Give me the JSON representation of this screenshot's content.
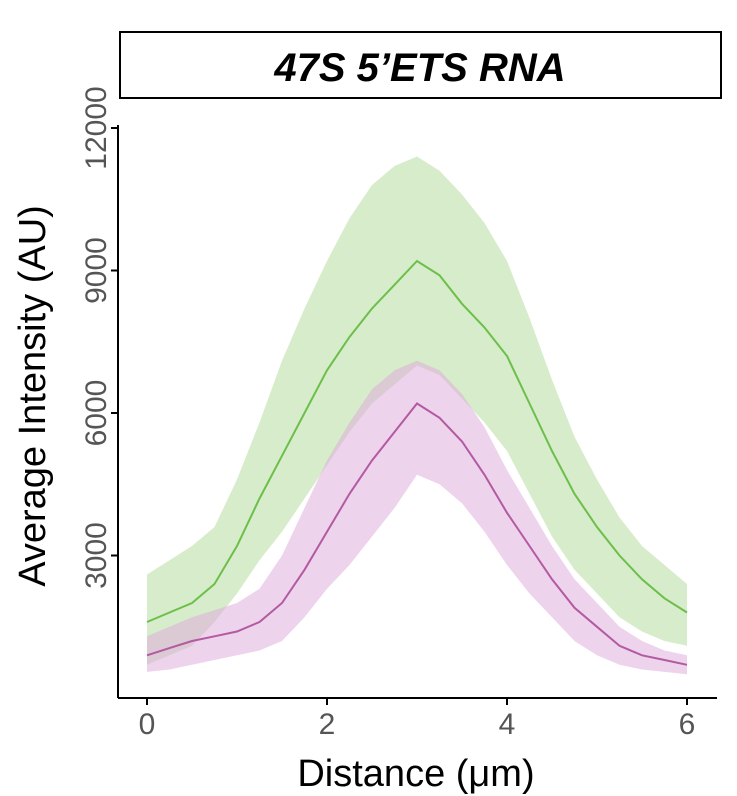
{
  "chart_data": {
    "type": "line",
    "title": "47S 5’ETS RNA",
    "xlabel": "Distance (μm)",
    "ylabel": "Average Intensity (AU)",
    "xlim": [
      0,
      6
    ],
    "ylim": [
      0,
      12000
    ],
    "xticks": [
      "0",
      "2",
      "4",
      "6"
    ],
    "yticks": [
      "3000",
      "6000",
      "9000",
      "12000"
    ],
    "grid": false,
    "legend": "none",
    "series": [
      {
        "color": "#6cbf4a",
        "band_color": "#b7dc9e",
        "x": [
          0,
          0.25,
          0.5,
          0.75,
          1.0,
          1.25,
          1.5,
          1.75,
          2.0,
          2.25,
          2.5,
          2.75,
          3.0,
          3.25,
          3.5,
          3.75,
          4.0,
          4.25,
          4.5,
          4.75,
          5.0,
          5.25,
          5.5,
          5.75,
          6.0
        ],
        "y": [
          1600,
          1800,
          2000,
          2400,
          3200,
          4200,
          5100,
          6000,
          6900,
          7600,
          8200,
          8700,
          9200,
          8900,
          8300,
          7800,
          7200,
          6200,
          5200,
          4300,
          3600,
          3000,
          2500,
          2100,
          1800
        ],
        "upper": [
          2600,
          2900,
          3200,
          3600,
          4600,
          5800,
          7100,
          8200,
          9200,
          10100,
          10800,
          11200,
          11400,
          11100,
          10600,
          10000,
          9200,
          8000,
          6700,
          5500,
          4600,
          3800,
          3200,
          2800,
          2400
        ],
        "lower": [
          700,
          900,
          1100,
          1600,
          2200,
          2900,
          3500,
          4200,
          4900,
          5600,
          6200,
          6600,
          7000,
          6800,
          6300,
          5800,
          5200,
          4300,
          3400,
          2700,
          2200,
          1700,
          1400,
          1200,
          1100
        ]
      },
      {
        "color": "#b35aa2",
        "band_color": "#dfaedb",
        "x": [
          0,
          0.25,
          0.5,
          0.75,
          1.0,
          1.25,
          1.5,
          1.75,
          2.0,
          2.25,
          2.5,
          2.75,
          3.0,
          3.25,
          3.5,
          3.75,
          4.0,
          4.25,
          4.5,
          4.75,
          5.0,
          5.25,
          5.5,
          5.75,
          6.0
        ],
        "y": [
          900,
          1050,
          1200,
          1300,
          1400,
          1600,
          2000,
          2700,
          3500,
          4300,
          5000,
          5600,
          6200,
          5900,
          5400,
          4700,
          3900,
          3200,
          2500,
          1900,
          1500,
          1100,
          900,
          800,
          700
        ],
        "upper": [
          1300,
          1500,
          1700,
          1850,
          2000,
          2300,
          3000,
          4000,
          5000,
          5800,
          6500,
          6900,
          7100,
          6900,
          6400,
          5700,
          4800,
          4000,
          3200,
          2500,
          2000,
          1500,
          1200,
          1000,
          900
        ],
        "lower": [
          550,
          600,
          700,
          800,
          900,
          1000,
          1200,
          1700,
          2300,
          2800,
          3400,
          4000,
          4700,
          4500,
          4100,
          3500,
          2800,
          2200,
          1700,
          1200,
          900,
          700,
          600,
          550,
          500
        ]
      }
    ]
  }
}
